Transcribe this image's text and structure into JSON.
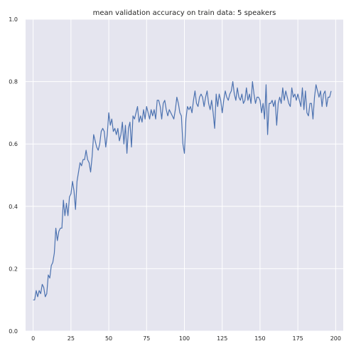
{
  "chart_data": {
    "type": "line",
    "title": "mean validation accuracy on train data: 5 speakers",
    "xlabel": "",
    "ylabel": "",
    "xlim": [
      -5,
      205
    ],
    "ylim": [
      0.0,
      1.0
    ],
    "xticks": [
      0,
      25,
      50,
      75,
      100,
      125,
      150,
      175,
      200
    ],
    "yticks": [
      0.0,
      0.2,
      0.4,
      0.6,
      0.8,
      1.0
    ],
    "xtick_labels": [
      "0",
      "25",
      "50",
      "75",
      "100",
      "125",
      "150",
      "175",
      "200"
    ],
    "ytick_labels": [
      "0.0",
      "0.2",
      "0.4",
      "0.6",
      "0.8",
      "1.0"
    ],
    "grid": true,
    "background_color": "#e5e5ef",
    "line_color": "#4c72b0",
    "series": [
      {
        "values": [
          0.1,
          0.1,
          0.13,
          0.11,
          0.13,
          0.12,
          0.15,
          0.14,
          0.11,
          0.12,
          0.18,
          0.17,
          0.21,
          0.22,
          0.25,
          0.33,
          0.29,
          0.32,
          0.33,
          0.33,
          0.42,
          0.37,
          0.41,
          0.37,
          0.43,
          0.44,
          0.48,
          0.45,
          0.39,
          0.48,
          0.51,
          0.54,
          0.53,
          0.55,
          0.55,
          0.58,
          0.55,
          0.54,
          0.51,
          0.56,
          0.63,
          0.61,
          0.59,
          0.58,
          0.6,
          0.64,
          0.65,
          0.64,
          0.59,
          0.63,
          0.7,
          0.66,
          0.68,
          0.64,
          0.65,
          0.63,
          0.65,
          0.61,
          0.63,
          0.67,
          0.6,
          0.66,
          0.57,
          0.65,
          0.67,
          0.59,
          0.69,
          0.68,
          0.7,
          0.72,
          0.67,
          0.69,
          0.67,
          0.71,
          0.68,
          0.72,
          0.7,
          0.68,
          0.71,
          0.69,
          0.71,
          0.68,
          0.74,
          0.74,
          0.72,
          0.68,
          0.73,
          0.74,
          0.71,
          0.69,
          0.71,
          0.7,
          0.69,
          0.68,
          0.71,
          0.75,
          0.73,
          0.7,
          0.69,
          0.6,
          0.57,
          0.68,
          0.72,
          0.71,
          0.72,
          0.7,
          0.74,
          0.77,
          0.73,
          0.72,
          0.75,
          0.76,
          0.75,
          0.72,
          0.75,
          0.77,
          0.73,
          0.71,
          0.74,
          0.7,
          0.65,
          0.76,
          0.72,
          0.76,
          0.74,
          0.7,
          0.74,
          0.77,
          0.75,
          0.74,
          0.76,
          0.77,
          0.8,
          0.76,
          0.74,
          0.78,
          0.75,
          0.74,
          0.76,
          0.73,
          0.74,
          0.78,
          0.74,
          0.76,
          0.73,
          0.8,
          0.76,
          0.73,
          0.75,
          0.75,
          0.74,
          0.7,
          0.73,
          0.68,
          0.79,
          0.63,
          0.73,
          0.73,
          0.74,
          0.72,
          0.74,
          0.66,
          0.73,
          0.75,
          0.73,
          0.78,
          0.74,
          0.77,
          0.75,
          0.73,
          0.72,
          0.78,
          0.75,
          0.76,
          0.74,
          0.76,
          0.74,
          0.72,
          0.78,
          0.71,
          0.77,
          0.7,
          0.69,
          0.73,
          0.73,
          0.68,
          0.75,
          0.79,
          0.77,
          0.75,
          0.77,
          0.72,
          0.76,
          0.77,
          0.72,
          0.75,
          0.75,
          0.77
        ]
      }
    ]
  }
}
